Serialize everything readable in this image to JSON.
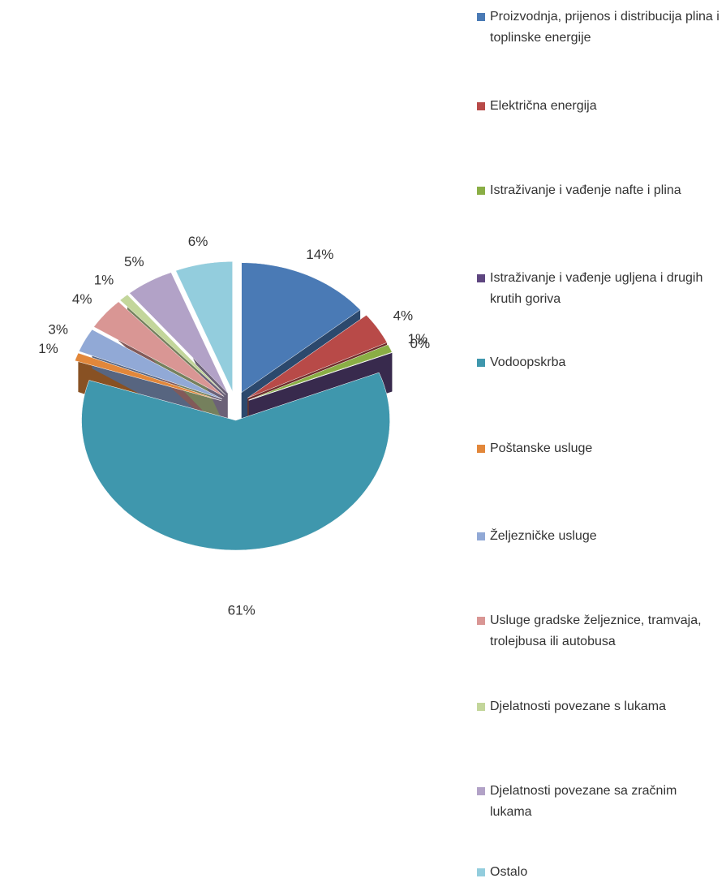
{
  "chart_data": {
    "type": "pie",
    "categories": [
      "Proizvodnja, prijenos i distribucija plina i toplinske energije",
      "Električna energija",
      "Istraživanje i vađenje nafte i plina",
      "Istraživanje i vađenje ugljena i drugih krutih goriva",
      "Vodoopskrba",
      "Poštanske usluge",
      "Željezničke usluge",
      "Usluge gradske željeznice, tramvaja, trolejbusa ili autobusa",
      "Djelatnosti povezane s lukama",
      "Djelatnosti povezane sa zračnim lukama",
      "Ostalo"
    ],
    "values": [
      14,
      4,
      1,
      0,
      61,
      1,
      3,
      4,
      1,
      5,
      6
    ],
    "value_labels": [
      "14%",
      "4%",
      "1%",
      "0%",
      "61%",
      "1%",
      "3%",
      "4%",
      "1%",
      "5%",
      "6%"
    ],
    "colors": [
      "#4a7ab5",
      "#b84a48",
      "#8aae45",
      "#5e4680",
      "#3f97ad",
      "#e2873a",
      "#91a9d6",
      "#d99694",
      "#c3d69b",
      "#b2a2c7",
      "#93cddd"
    ],
    "legend": "right"
  }
}
